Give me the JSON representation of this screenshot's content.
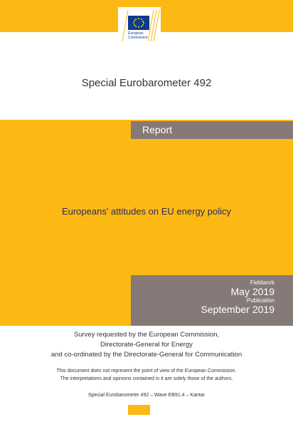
{
  "logo": {
    "line1": "European",
    "line2": "Commission"
  },
  "header": {
    "title": "Special Eurobarometer 492"
  },
  "band": {
    "label": "Report",
    "title": "Europeans' attitudes on EU energy policy"
  },
  "dates": {
    "fieldwork_label": "Fieldwork",
    "fieldwork": "May 2019",
    "publication_label": "Publication",
    "publication": "September 2019"
  },
  "footer": {
    "request": [
      "Survey requested by the European Commission,",
      "Directorate-General for Energy",
      "and co-ordinated by the Directorate-General for Communication"
    ],
    "disclaimer": [
      "This document does not represent the point of view of the European Commission.",
      "The interpretations and opinions contained in it are solely those of the authors."
    ],
    "reference": "Special Eurobarometer 492 – Wave EB91.4 – Kantar"
  }
}
